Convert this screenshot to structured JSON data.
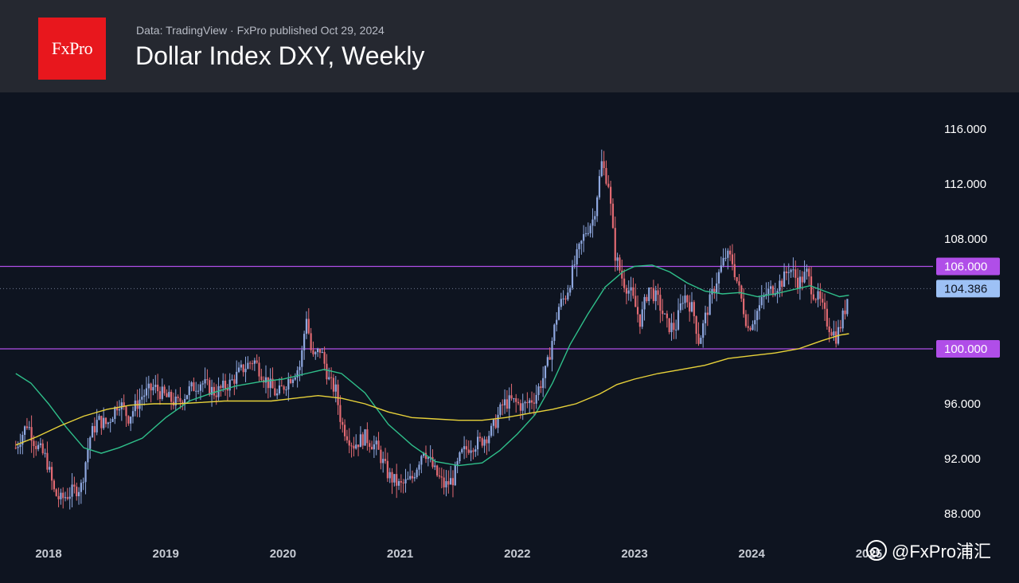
{
  "header": {
    "logo_text": "FxPro",
    "source": "Data: TradingView · FxPro published Oct 29, 2024",
    "title": "Dollar Index DXY, Weekly"
  },
  "watermark": {
    "text": "@FxPro浦汇"
  },
  "colors": {
    "background": "#0e1420",
    "header": "#252830",
    "up_candle": "#8fa8e0",
    "down_candle": "#e26a72",
    "ma_short": "#2fbf8a",
    "ma_long": "#e8d23a",
    "level_line": "#b04ee8",
    "price_label": "#9dc1f5"
  },
  "chart_data": {
    "type": "candlestick",
    "title": "Dollar Index DXY, Weekly",
    "timeframe": "weekly",
    "x_range": [
      2017.7,
      2025.05
    ],
    "ylim": [
      87,
      117.5
    ],
    "y_ticks": [
      "88.000",
      "92.000",
      "96.000",
      "100.000",
      "104.386",
      "106.000",
      "108.000",
      "112.000",
      "116.000"
    ],
    "y_tick_values": [
      88,
      92,
      96,
      100,
      104.386,
      106,
      108,
      112,
      116
    ],
    "x_ticks": [
      "2018",
      "2019",
      "2020",
      "2021",
      "2022",
      "2023",
      "2024",
      "2025"
    ],
    "x_tick_values": [
      2018,
      2019,
      2020,
      2021,
      2022,
      2023,
      2024,
      2025
    ],
    "horizontal_levels": [
      {
        "value": 106.0,
        "label": "106.000"
      },
      {
        "value": 100.0,
        "label": "100.000"
      }
    ],
    "last_price": {
      "value": 104.386,
      "label": "104.386"
    },
    "price_path": [
      [
        2017.72,
        92.8
      ],
      [
        2017.82,
        94.6
      ],
      [
        2017.88,
        93.2
      ],
      [
        2017.98,
        92.0
      ],
      [
        2018.05,
        89.5
      ],
      [
        2018.1,
        89.0
      ],
      [
        2018.2,
        89.6
      ],
      [
        2018.28,
        90.0
      ],
      [
        2018.35,
        93.5
      ],
      [
        2018.42,
        94.8
      ],
      [
        2018.5,
        94.5
      ],
      [
        2018.6,
        96.2
      ],
      [
        2018.68,
        95.0
      ],
      [
        2018.8,
        96.6
      ],
      [
        2018.9,
        97.2
      ],
      [
        2019.0,
        96.5
      ],
      [
        2019.1,
        96.0
      ],
      [
        2019.2,
        97.0
      ],
      [
        2019.3,
        97.6
      ],
      [
        2019.42,
        96.8
      ],
      [
        2019.55,
        97.5
      ],
      [
        2019.65,
        98.5
      ],
      [
        2019.75,
        99.2
      ],
      [
        2019.85,
        97.8
      ],
      [
        2019.95,
        96.6
      ],
      [
        2020.05,
        97.8
      ],
      [
        2020.15,
        98.8
      ],
      [
        2020.2,
        102.5
      ],
      [
        2020.25,
        99.2
      ],
      [
        2020.32,
        100.0
      ],
      [
        2020.4,
        97.5
      ],
      [
        2020.45,
        97.0
      ],
      [
        2020.5,
        94.5
      ],
      [
        2020.6,
        93.0
      ],
      [
        2020.7,
        93.6
      ],
      [
        2020.8,
        92.8
      ],
      [
        2020.9,
        90.8
      ],
      [
        2021.0,
        90.0
      ],
      [
        2021.1,
        90.5
      ],
      [
        2021.2,
        92.8
      ],
      [
        2021.3,
        91.0
      ],
      [
        2021.38,
        90.0
      ],
      [
        2021.45,
        90.5
      ],
      [
        2021.52,
        92.3
      ],
      [
        2021.6,
        93.0
      ],
      [
        2021.68,
        93.2
      ],
      [
        2021.78,
        94.0
      ],
      [
        2021.88,
        96.0
      ],
      [
        2021.95,
        96.2
      ],
      [
        2022.05,
        95.8
      ],
      [
        2022.15,
        96.5
      ],
      [
        2022.25,
        98.5
      ],
      [
        2022.35,
        103.0
      ],
      [
        2022.42,
        104.0
      ],
      [
        2022.5,
        106.5
      ],
      [
        2022.58,
        108.5
      ],
      [
        2022.65,
        109.5
      ],
      [
        2022.72,
        113.5
      ],
      [
        2022.78,
        112.0
      ],
      [
        2022.83,
        107.0
      ],
      [
        2022.9,
        105.0
      ],
      [
        2022.97,
        104.0
      ],
      [
        2023.05,
        102.0
      ],
      [
        2023.12,
        104.5
      ],
      [
        2023.2,
        103.5
      ],
      [
        2023.28,
        101.7
      ],
      [
        2023.35,
        101.5
      ],
      [
        2023.42,
        104.0
      ],
      [
        2023.5,
        102.8
      ],
      [
        2023.55,
        100.5
      ],
      [
        2023.62,
        102.8
      ],
      [
        2023.7,
        105.0
      ],
      [
        2023.78,
        106.8
      ],
      [
        2023.83,
        106.5
      ],
      [
        2023.9,
        104.0
      ],
      [
        2023.97,
        101.5
      ],
      [
        2024.05,
        102.8
      ],
      [
        2024.12,
        104.0
      ],
      [
        2024.2,
        104.5
      ],
      [
        2024.27,
        105.0
      ],
      [
        2024.32,
        106.0
      ],
      [
        2024.4,
        104.8
      ],
      [
        2024.47,
        105.5
      ],
      [
        2024.52,
        104.2
      ],
      [
        2024.58,
        103.5
      ],
      [
        2024.65,
        101.8
      ],
      [
        2024.72,
        100.9
      ],
      [
        2024.75,
        101.5
      ],
      [
        2024.8,
        103.0
      ],
      [
        2024.83,
        104.4
      ]
    ],
    "ma_short_path": [
      [
        2017.72,
        98.2
      ],
      [
        2017.85,
        97.5
      ],
      [
        2018.0,
        96.0
      ],
      [
        2018.15,
        94.3
      ],
      [
        2018.3,
        92.8
      ],
      [
        2018.45,
        92.4
      ],
      [
        2018.6,
        92.8
      ],
      [
        2018.8,
        93.5
      ],
      [
        2019.0,
        95.0
      ],
      [
        2019.2,
        96.2
      ],
      [
        2019.4,
        96.8
      ],
      [
        2019.6,
        97.3
      ],
      [
        2019.8,
        97.6
      ],
      [
        2020.0,
        97.8
      ],
      [
        2020.2,
        98.2
      ],
      [
        2020.35,
        98.5
      ],
      [
        2020.5,
        98.2
      ],
      [
        2020.7,
        96.8
      ],
      [
        2020.9,
        94.5
      ],
      [
        2021.1,
        93.0
      ],
      [
        2021.3,
        91.8
      ],
      [
        2021.5,
        91.5
      ],
      [
        2021.7,
        91.7
      ],
      [
        2021.85,
        92.6
      ],
      [
        2022.0,
        93.8
      ],
      [
        2022.15,
        95.2
      ],
      [
        2022.3,
        97.5
      ],
      [
        2022.45,
        100.3
      ],
      [
        2022.6,
        102.5
      ],
      [
        2022.75,
        104.5
      ],
      [
        2022.9,
        105.6
      ],
      [
        2023.0,
        106.0
      ],
      [
        2023.15,
        106.1
      ],
      [
        2023.3,
        105.6
      ],
      [
        2023.45,
        104.8
      ],
      [
        2023.6,
        104.2
      ],
      [
        2023.75,
        104.0
      ],
      [
        2023.9,
        104.1
      ],
      [
        2024.05,
        103.8
      ],
      [
        2024.2,
        104.0
      ],
      [
        2024.35,
        104.3
      ],
      [
        2024.5,
        104.6
      ],
      [
        2024.62,
        104.2
      ],
      [
        2024.75,
        103.8
      ],
      [
        2024.83,
        103.9
      ]
    ],
    "ma_long_path": [
      [
        2017.72,
        93.0
      ],
      [
        2017.9,
        93.6
      ],
      [
        2018.1,
        94.4
      ],
      [
        2018.3,
        95.1
      ],
      [
        2018.5,
        95.6
      ],
      [
        2018.7,
        95.9
      ],
      [
        2018.9,
        96.0
      ],
      [
        2019.1,
        96.0
      ],
      [
        2019.3,
        96.1
      ],
      [
        2019.5,
        96.2
      ],
      [
        2019.7,
        96.2
      ],
      [
        2019.9,
        96.2
      ],
      [
        2020.1,
        96.4
      ],
      [
        2020.3,
        96.6
      ],
      [
        2020.5,
        96.4
      ],
      [
        2020.7,
        96.0
      ],
      [
        2020.9,
        95.4
      ],
      [
        2021.1,
        95.0
      ],
      [
        2021.3,
        94.9
      ],
      [
        2021.5,
        94.8
      ],
      [
        2021.7,
        94.8
      ],
      [
        2021.9,
        95.0
      ],
      [
        2022.1,
        95.3
      ],
      [
        2022.3,
        95.6
      ],
      [
        2022.5,
        96.0
      ],
      [
        2022.7,
        96.7
      ],
      [
        2022.85,
        97.4
      ],
      [
        2023.0,
        97.8
      ],
      [
        2023.2,
        98.2
      ],
      [
        2023.4,
        98.5
      ],
      [
        2023.6,
        98.8
      ],
      [
        2023.8,
        99.3
      ],
      [
        2024.0,
        99.5
      ],
      [
        2024.2,
        99.7
      ],
      [
        2024.4,
        100.0
      ],
      [
        2024.6,
        100.6
      ],
      [
        2024.75,
        101.0
      ],
      [
        2024.83,
        101.1
      ]
    ]
  }
}
